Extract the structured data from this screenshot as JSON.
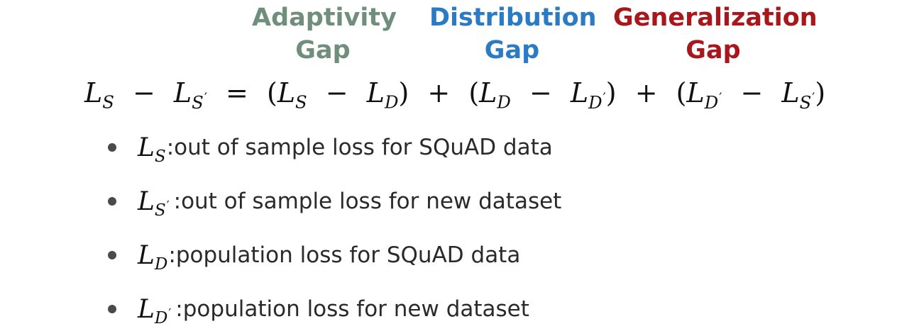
{
  "gap_labels": {
    "adaptivity": {
      "line1": "Adaptivity",
      "line2": "Gap",
      "color": "#6f8f7c"
    },
    "distribution": {
      "line1": "Distribution",
      "line2": "Gap",
      "color": "#2a7bc3"
    },
    "generalization": {
      "line1": "Generalization",
      "line2": "Gap",
      "color": "#a8171c"
    }
  },
  "equation": {
    "symbol": "L",
    "subscripts": {
      "S": "S",
      "D": "D",
      "prime": "′"
    },
    "operators": {
      "minus": "−",
      "equals": "=",
      "plus": "+",
      "open_paren": "(",
      "close_paren": ")"
    }
  },
  "definitions": [
    {
      "symbol": "L",
      "subscript": "S",
      "prime": "",
      "separator": ":",
      "text": " out of sample loss for SQuAD data"
    },
    {
      "symbol": "L",
      "subscript": "S",
      "prime": "′",
      "separator": ":",
      "text": " out of sample loss for new dataset"
    },
    {
      "symbol": "L",
      "subscript": "D",
      "prime": "",
      "separator": ":",
      "text": " population loss for SQuAD data"
    },
    {
      "symbol": "L",
      "subscript": "D",
      "prime": "′",
      "separator": ":",
      "text": " population loss for new dataset"
    }
  ]
}
